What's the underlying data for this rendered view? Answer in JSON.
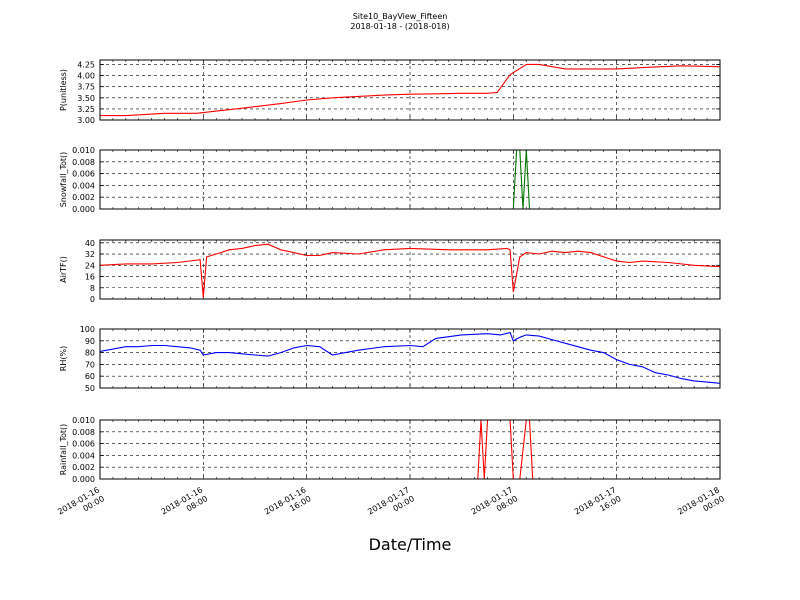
{
  "title": "Site10_BayView_Fifteen",
  "subtitle": "2018-01-18 - (2018-018)",
  "xlabel": "Date/Time",
  "x_ticks": [
    {
      "t": 0,
      "line1": "2018-01-16",
      "line2": "00:00"
    },
    {
      "t": 8,
      "line1": "2018-01-16",
      "line2": "08:00"
    },
    {
      "t": 16,
      "line1": "2018-01-16",
      "line2": "16:00"
    },
    {
      "t": 24,
      "line1": "2018-01-17",
      "line2": "00:00"
    },
    {
      "t": 32,
      "line1": "2018-01-17",
      "line2": "08:00"
    },
    {
      "t": 40,
      "line1": "2018-01-17",
      "line2": "16:00"
    },
    {
      "t": 48,
      "line1": "2018-01-18",
      "line2": "00:00"
    }
  ],
  "chart_data": [
    {
      "type": "line",
      "ylabel": "P(unitless)",
      "ylim": [
        3.0,
        4.35
      ],
      "yticks": [
        "3.00",
        "3.25",
        "3.50",
        "3.75",
        "4.00",
        "4.25"
      ],
      "grid": true,
      "series": [
        {
          "color": "#ff0000",
          "x": [
            "2018-01-16 00:00",
            "2018-01-16 02:00",
            "2018-01-16 05:00",
            "2018-01-16 07:30",
            "2018-01-16 09:00",
            "2018-01-16 10:30",
            "2018-01-16 12:00",
            "2018-01-16 14:00",
            "2018-01-16 16:00",
            "2018-01-16 18:00",
            "2018-01-16 20:00",
            "2018-01-16 22:00",
            "2018-01-17 00:00",
            "2018-01-17 02:00",
            "2018-01-17 04:00",
            "2018-01-17 06:00",
            "2018-01-17 06:45",
            "2018-01-17 07:45",
            "2018-01-17 09:00",
            "2018-01-17 10:00",
            "2018-01-17 12:00",
            "2018-01-17 14:00",
            "2018-01-17 16:00",
            "2018-01-17 18:00",
            "2018-01-17 21:00",
            "2018-01-18 00:00"
          ],
          "y": [
            3.1,
            3.1,
            3.15,
            3.15,
            3.2,
            3.25,
            3.3,
            3.37,
            3.45,
            3.5,
            3.53,
            3.56,
            3.58,
            3.59,
            3.6,
            3.6,
            3.62,
            4.02,
            4.25,
            4.25,
            4.15,
            4.15,
            4.15,
            4.18,
            4.22,
            4.2
          ]
        }
      ]
    },
    {
      "type": "line",
      "ylabel": "Snowfall_Tot()",
      "ylim": [
        0,
        0.01
      ],
      "yticks": [
        "0.000",
        "0.002",
        "0.004",
        "0.006",
        "0.008",
        "0.010"
      ],
      "grid": true,
      "series": [
        {
          "color": "#007700",
          "x": [
            "2018-01-16 00:00",
            "2018-01-17 08:00",
            "2018-01-17 08:15",
            "2018-01-17 08:30",
            "2018-01-17 08:45",
            "2018-01-17 09:00",
            "2018-01-17 09:15",
            "2018-01-18 00:00"
          ],
          "y": [
            0,
            0,
            0.01,
            0.01,
            0,
            0.01,
            0,
            0
          ]
        }
      ]
    },
    {
      "type": "line",
      "ylabel": "AirTF()",
      "ylim": [
        0,
        42
      ],
      "yticks": [
        "0",
        "8",
        "16",
        "24",
        "32",
        "40"
      ],
      "grid": true,
      "series": [
        {
          "color": "#ff0000",
          "x": [
            "2018-01-16 00:00",
            "2018-01-16 02:00",
            "2018-01-16 04:00",
            "2018-01-16 06:00",
            "2018-01-16 07:45",
            "2018-01-16 08:00",
            "2018-01-16 08:15",
            "2018-01-16 09:00",
            "2018-01-16 10:00",
            "2018-01-16 11:00",
            "2018-01-16 12:00",
            "2018-01-16 13:00",
            "2018-01-16 14:00",
            "2018-01-16 15:00",
            "2018-01-16 16:00",
            "2018-01-16 17:00",
            "2018-01-16 18:00",
            "2018-01-16 20:00",
            "2018-01-16 22:00",
            "2018-01-17 00:00",
            "2018-01-17 03:00",
            "2018-01-17 06:00",
            "2018-01-17 07:30",
            "2018-01-17 07:45",
            "2018-01-17 08:00",
            "2018-01-17 08:30",
            "2018-01-17 09:00",
            "2018-01-17 10:00",
            "2018-01-17 11:00",
            "2018-01-17 12:00",
            "2018-01-17 13:00",
            "2018-01-17 14:00",
            "2018-01-17 15:00",
            "2018-01-17 16:00",
            "2018-01-17 17:00",
            "2018-01-17 18:00",
            "2018-01-17 20:00",
            "2018-01-17 22:00",
            "2018-01-18 00:00"
          ],
          "y": [
            24,
            25,
            25,
            26,
            28,
            1,
            30,
            32,
            35,
            36,
            38,
            39,
            35,
            33,
            31,
            31,
            33,
            32,
            35,
            36,
            35,
            35,
            36,
            35,
            5,
            30,
            33,
            32,
            34,
            33,
            34,
            33,
            30,
            27,
            26,
            27,
            26,
            24,
            23
          ]
        }
      ]
    },
    {
      "type": "line",
      "ylabel": "RH(%)",
      "ylim": [
        50,
        100
      ],
      "yticks": [
        "50",
        "60",
        "70",
        "80",
        "90",
        "100"
      ],
      "grid": true,
      "series": [
        {
          "color": "#0000ff",
          "x": [
            "2018-01-16 00:00",
            "2018-01-16 01:00",
            "2018-01-16 02:00",
            "2018-01-16 03:00",
            "2018-01-16 04:00",
            "2018-01-16 05:00",
            "2018-01-16 06:00",
            "2018-01-16 07:00",
            "2018-01-16 07:45",
            "2018-01-16 08:00",
            "2018-01-16 09:00",
            "2018-01-16 10:00",
            "2018-01-16 11:00",
            "2018-01-16 12:00",
            "2018-01-16 13:00",
            "2018-01-16 14:00",
            "2018-01-16 15:00",
            "2018-01-16 16:00",
            "2018-01-16 17:00",
            "2018-01-16 18:00",
            "2018-01-16 19:00",
            "2018-01-16 20:00",
            "2018-01-16 22:00",
            "2018-01-17 00:00",
            "2018-01-17 01:00",
            "2018-01-17 02:00",
            "2018-01-17 04:00",
            "2018-01-17 06:00",
            "2018-01-17 07:00",
            "2018-01-17 07:45",
            "2018-01-17 08:00",
            "2018-01-17 08:30",
            "2018-01-17 09:00",
            "2018-01-17 10:00",
            "2018-01-17 11:00",
            "2018-01-17 12:00",
            "2018-01-17 13:00",
            "2018-01-17 14:00",
            "2018-01-17 15:00",
            "2018-01-17 16:00",
            "2018-01-17 17:00",
            "2018-01-17 18:00",
            "2018-01-17 19:00",
            "2018-01-17 20:00",
            "2018-01-17 21:00",
            "2018-01-17 22:00",
            "2018-01-17 23:00",
            "2018-01-18 00:00"
          ],
          "y": [
            81,
            83,
            85,
            85,
            86,
            86,
            85,
            84,
            82,
            78,
            80,
            80,
            79,
            78,
            77,
            80,
            84,
            86,
            85,
            78,
            80,
            82,
            85,
            86,
            85,
            92,
            95,
            96,
            95,
            97,
            90,
            93,
            95,
            94,
            91,
            88,
            85,
            82,
            80,
            74,
            70,
            68,
            63,
            61,
            58,
            56,
            55,
            54
          ]
        }
      ]
    },
    {
      "type": "line",
      "ylabel": "Rainfall_Tot()",
      "ylim": [
        0,
        0.01
      ],
      "yticks": [
        "0.000",
        "0.002",
        "0.004",
        "0.006",
        "0.008",
        "0.010"
      ],
      "grid": true,
      "series": [
        {
          "color": "#ff0000",
          "x": [
            "2018-01-16 00:00",
            "2018-01-17 05:15",
            "2018-01-17 05:30",
            "2018-01-17 05:45",
            "2018-01-17 06:00",
            "2018-01-17 06:15",
            "2018-01-17 07:45",
            "2018-01-17 08:00",
            "2018-01-17 08:30",
            "2018-01-17 09:00",
            "2018-01-17 09:15",
            "2018-01-17 09:30",
            "2018-01-17 09:45",
            "2018-01-18 00:00"
          ],
          "y": [
            0,
            0,
            0.01,
            0,
            0.01,
            0.01,
            0.01,
            0,
            0,
            0.01,
            0.01,
            0,
            0,
            0
          ]
        }
      ]
    }
  ]
}
